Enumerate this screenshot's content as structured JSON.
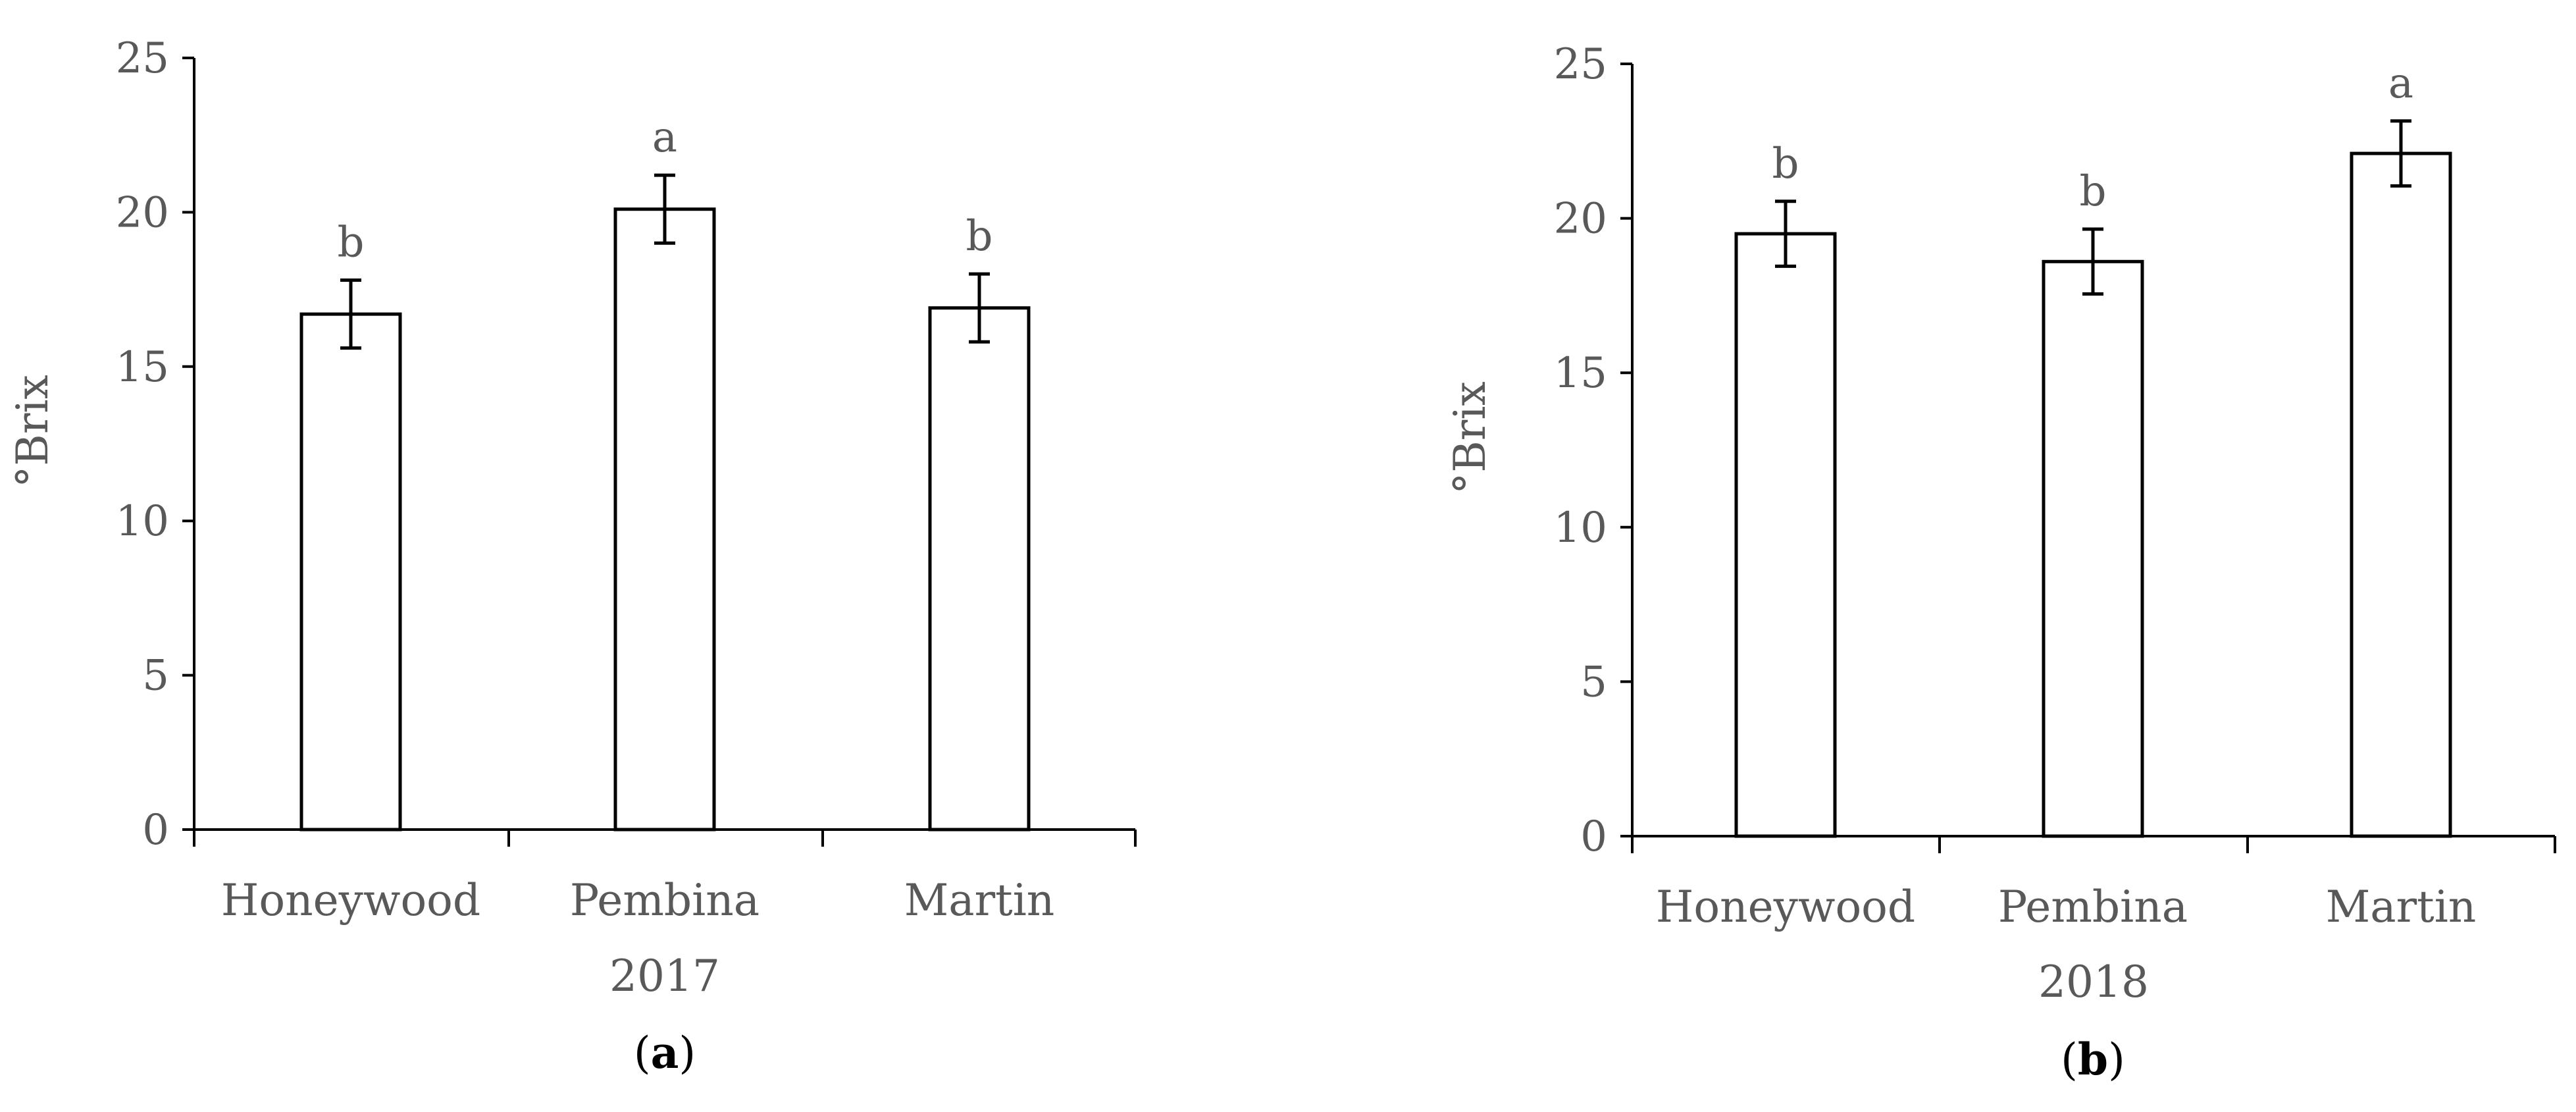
{
  "chart_data": [
    {
      "type": "bar",
      "categories": [
        "Honeywood",
        "Pembina",
        "Martin"
      ],
      "values": [
        16.7,
        20.1,
        16.9
      ],
      "errors": [
        1.1,
        1.1,
        1.1
      ],
      "letters": [
        "b",
        "a",
        "b"
      ],
      "xlabel": "2017",
      "ylabel": "°Brix",
      "ylim": [
        0,
        25
      ],
      "yticks": [
        "0",
        "5",
        "10",
        "15",
        "20",
        "25"
      ],
      "panel_prefix": "(",
      "panel_letter": "a",
      "panel_suffix": ")",
      "grid": false,
      "legend": "none"
    },
    {
      "type": "bar",
      "categories": [
        "Honeywood",
        "Pembina",
        "Martin"
      ],
      "values": [
        19.5,
        18.6,
        22.1
      ],
      "errors": [
        1.05,
        1.05,
        1.05
      ],
      "letters": [
        "b",
        "b",
        "a"
      ],
      "xlabel": "2018",
      "ylabel": "°Brix",
      "ylim": [
        0,
        25
      ],
      "yticks": [
        "0",
        "5",
        "10",
        "15",
        "20",
        "25"
      ],
      "panel_prefix": "(",
      "panel_letter": "b",
      "panel_suffix": ")",
      "grid": false,
      "legend": "none"
    }
  ],
  "colors": {
    "bar_fill": "#ffffff",
    "bar_stroke": "#000000",
    "axis": "#000000",
    "text": "#595959"
  }
}
